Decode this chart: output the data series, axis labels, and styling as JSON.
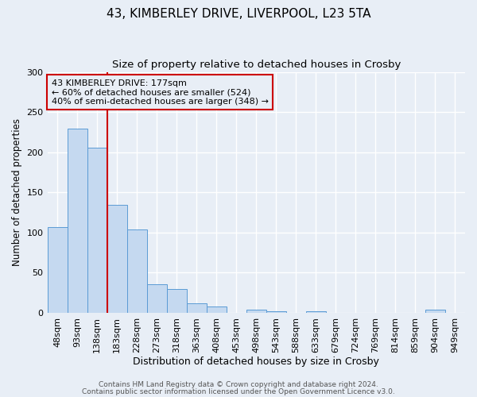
{
  "title": "43, KIMBERLEY DRIVE, LIVERPOOL, L23 5TA",
  "subtitle": "Size of property relative to detached houses in Crosby",
  "xlabel": "Distribution of detached houses by size in Crosby",
  "ylabel": "Number of detached properties",
  "bin_labels": [
    "48sqm",
    "93sqm",
    "138sqm",
    "183sqm",
    "228sqm",
    "273sqm",
    "318sqm",
    "363sqm",
    "408sqm",
    "453sqm",
    "498sqm",
    "543sqm",
    "588sqm",
    "633sqm",
    "679sqm",
    "724sqm",
    "769sqm",
    "814sqm",
    "859sqm",
    "904sqm",
    "949sqm"
  ],
  "bar_values": [
    107,
    229,
    206,
    134,
    104,
    36,
    30,
    12,
    8,
    0,
    4,
    2,
    0,
    2,
    0,
    0,
    0,
    0,
    0,
    4,
    0
  ],
  "bar_color": "#c5d9f0",
  "bar_edge_color": "#5b9bd5",
  "background_color": "#e8eef6",
  "grid_color": "#ffffff",
  "vline_color": "#cc0000",
  "annotation_box_text": "43 KIMBERLEY DRIVE: 177sqm\n← 60% of detached houses are smaller (524)\n40% of semi-detached houses are larger (348) →",
  "annotation_box_color": "#cc0000",
  "ylim": [
    0,
    300
  ],
  "yticks": [
    0,
    50,
    100,
    150,
    200,
    250,
    300
  ],
  "footer_line1": "Contains HM Land Registry data © Crown copyright and database right 2024.",
  "footer_line2": "Contains public sector information licensed under the Open Government Licence v3.0.",
  "title_fontsize": 11,
  "subtitle_fontsize": 9.5,
  "xlabel_fontsize": 9,
  "ylabel_fontsize": 8.5,
  "tick_fontsize": 8,
  "footer_fontsize": 6.5
}
